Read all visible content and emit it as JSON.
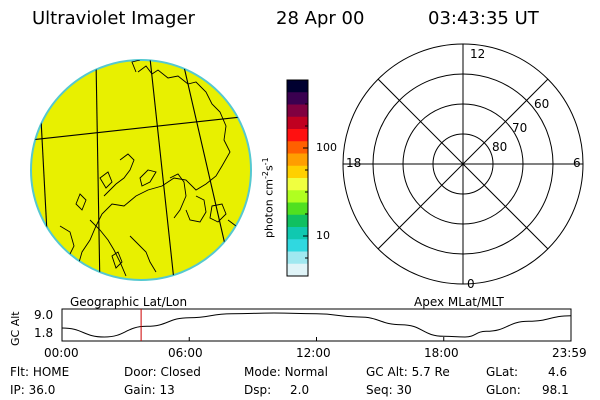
{
  "header": {
    "instrument": "Ultraviolet Imager",
    "date": "28 Apr 00",
    "time": "03:43:35 UT"
  },
  "globe": {
    "fill_color": "#e8f000",
    "limb_color": "#55c8d0",
    "caption": "Geographic Lat/Lon"
  },
  "colorbar": {
    "label": "photon cm-2s-1",
    "label_main": "photon cm",
    "label_exp1": "-2",
    "label_s": "s",
    "label_exp2": "-1",
    "ticks": [
      "100",
      "10"
    ],
    "colors": [
      "#000030",
      "#3a0050",
      "#800040",
      "#c00020",
      "#ff1010",
      "#ff6000",
      "#ff9e00",
      "#ffd000",
      "#f0ff40",
      "#b0ff20",
      "#50e020",
      "#10c060",
      "#10c8b0",
      "#30d8e0",
      "#a0e8f0",
      "#e0f4f8"
    ]
  },
  "polar": {
    "labels": {
      "top": "12",
      "left": "18",
      "right": "6",
      "bottom": "0"
    },
    "lat_labels": [
      "60",
      "70",
      "80"
    ],
    "caption": "Apex MLat/MLT"
  },
  "altitude": {
    "axis_label": "GC Alt",
    "y_ticks": [
      "9.0",
      "1.8"
    ],
    "x_ticks": [
      "00:00",
      "06:00",
      "12:00",
      "18:00",
      "23:59"
    ],
    "marker_color": "#cc0000"
  },
  "chart_data": {
    "type": "line",
    "x": [
      0,
      2,
      4,
      6,
      8,
      10,
      12,
      14,
      16,
      18,
      19,
      20,
      22,
      24
    ],
    "series": [
      {
        "values": [
          4.5,
          1.8,
          5.0,
          7.6,
          8.8,
          9.0,
          8.8,
          7.8,
          5.5,
          2.0,
          1.8,
          3.5,
          6.5,
          8.2
        ]
      }
    ],
    "xlabel": "",
    "ylabel": "GC Alt",
    "ylim": [
      1.8,
      9.0
    ],
    "xlim": [
      0,
      24
    ],
    "marker_x": 3.73
  },
  "status": {
    "row1": [
      {
        "label": "Flt:",
        "value": "HOME"
      },
      {
        "label": "Door:",
        "value": "Closed"
      },
      {
        "label": "Mode:",
        "value": "Normal"
      },
      {
        "label": "GC Alt:",
        "value": "5.7 Re"
      },
      {
        "label": "GLat:",
        "value": "4.6"
      }
    ],
    "row2": [
      {
        "label": "IP:",
        "value": "36.0"
      },
      {
        "label": "Gain:",
        "value": "13"
      },
      {
        "label": "Dsp:",
        "value": "2.0"
      },
      {
        "label": "Seq:",
        "value": "30"
      },
      {
        "label": "GLon:",
        "value": "98.1"
      }
    ]
  }
}
